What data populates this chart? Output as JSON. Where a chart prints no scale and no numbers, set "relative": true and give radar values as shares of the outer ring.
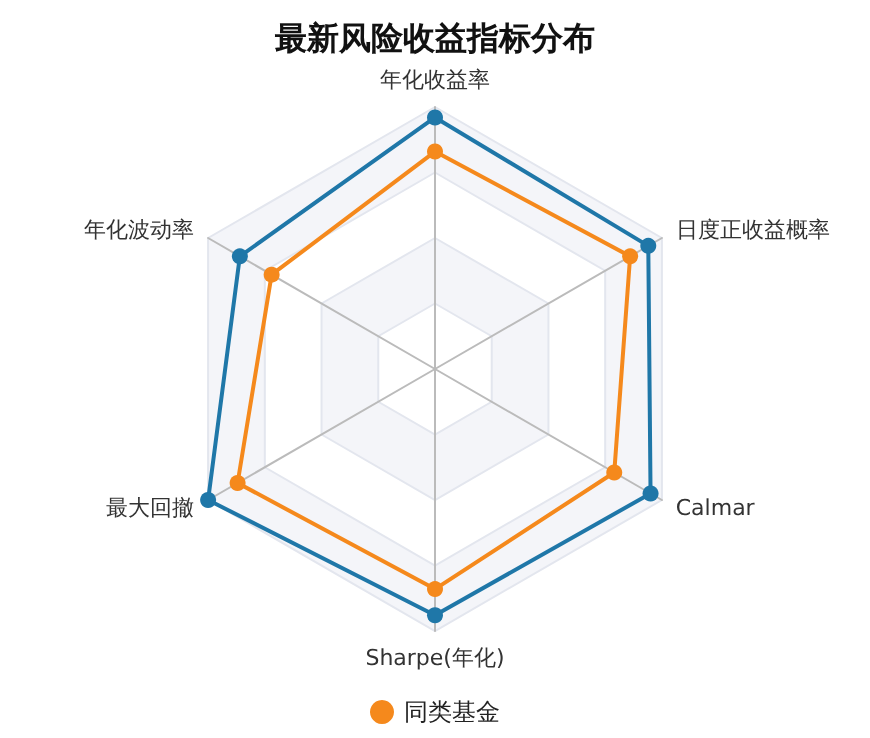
{
  "chart_data": {
    "type": "radar",
    "title": "最新风险收益指标分布",
    "categories": [
      "年化收益率",
      "日度正收益概率",
      "Calmar",
      "Sharpe(年化)",
      "最大回撤",
      "年化波动率"
    ],
    "relative": true,
    "legend": "bottom",
    "marker": "circle",
    "series": [
      {
        "color": "#1f77a8",
        "values": [
          0.96,
          0.94,
          0.95,
          0.94,
          1.0,
          0.86
        ]
      },
      {
        "name": "同类基金",
        "color": "#f5891c",
        "values": [
          0.83,
          0.86,
          0.79,
          0.84,
          0.87,
          0.72
        ]
      }
    ]
  }
}
